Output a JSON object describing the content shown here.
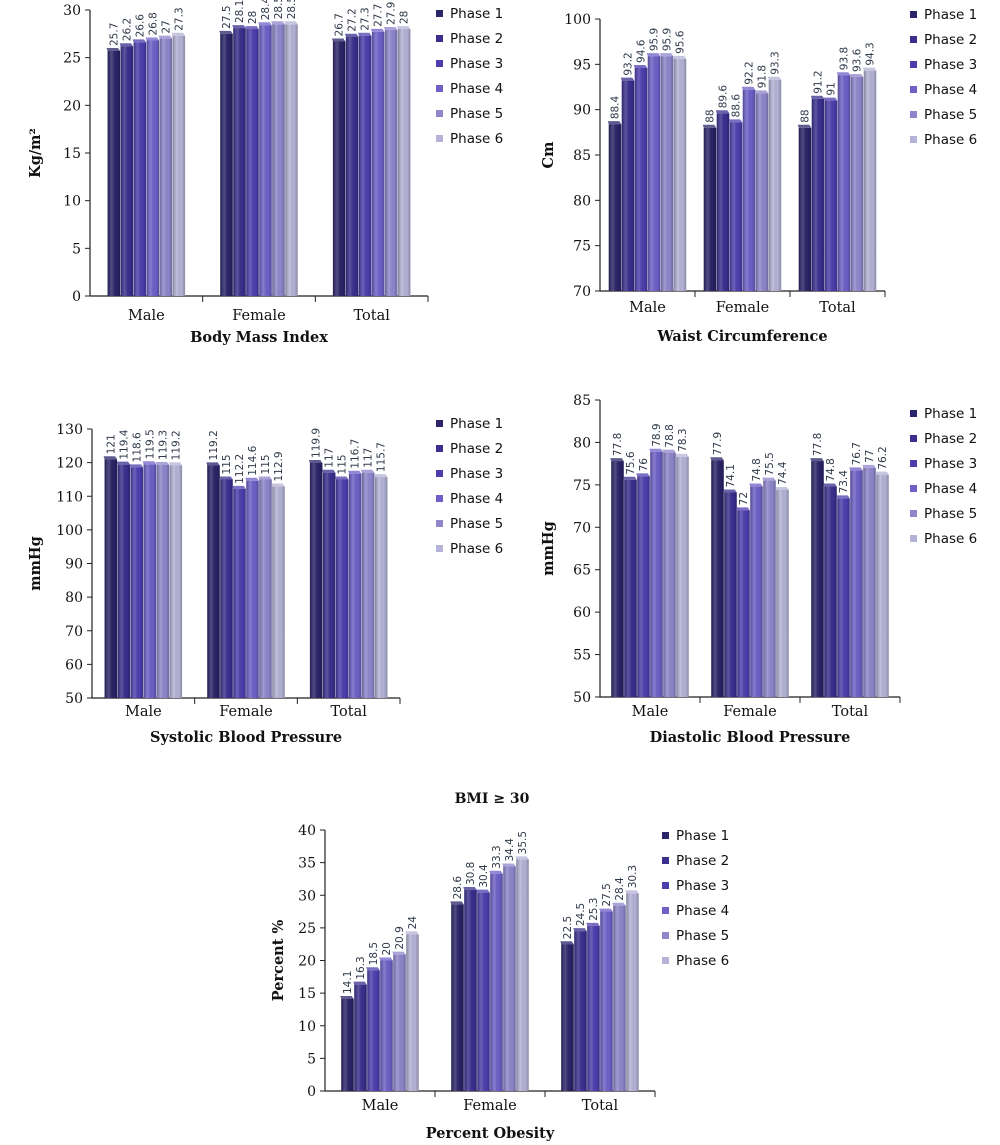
{
  "phase_colors": [
    "#2a2468",
    "#3a2f8e",
    "#4d3eae",
    "#6e60c8",
    "#8f86cc",
    "#b4b2d6"
  ],
  "chart_data": [
    {
      "id": "bmi",
      "type": "bar",
      "title": "Body Mass Index",
      "ylabel": "Kg/m²",
      "categories": [
        "Male",
        "Female",
        "Total"
      ],
      "ylim": [
        0,
        30
      ],
      "yticks": [
        0,
        5,
        10,
        15,
        20,
        25,
        30
      ],
      "legend_position": "right",
      "series": [
        {
          "name": "Phase 1",
          "values": [
            25.7,
            27.5,
            26.7
          ],
          "labels": [
            "25.7",
            "27.5",
            "26.7"
          ]
        },
        {
          "name": "Phase 2",
          "values": [
            26.2,
            28.1,
            27.2
          ],
          "labels": [
            "26.2",
            "28.1",
            "27.2"
          ]
        },
        {
          "name": "Phase 3",
          "values": [
            26.6,
            28,
            27.3
          ],
          "labels": [
            "26.6",
            "28",
            "27.3"
          ]
        },
        {
          "name": "Phase 4",
          "values": [
            26.8,
            28.4,
            27.7
          ],
          "labels": [
            "26.8",
            "28.4",
            "27.7"
          ]
        },
        {
          "name": "Phase 5",
          "values": [
            27,
            28.5,
            27.9
          ],
          "labels": [
            "27",
            "28.5",
            "27.9"
          ]
        },
        {
          "name": "Phase 6",
          "values": [
            27.3,
            28.5,
            28
          ],
          "labels": [
            "27.3",
            "28.5",
            "28"
          ]
        }
      ]
    },
    {
      "id": "waist",
      "type": "bar",
      "title": "Waist Circumference",
      "ylabel": "Cm",
      "categories": [
        "Male",
        "Female",
        "Total"
      ],
      "ylim": [
        70,
        100
      ],
      "yticks": [
        70,
        75,
        80,
        85,
        90,
        95,
        100
      ],
      "legend_position": "right",
      "series": [
        {
          "name": "Phase 1",
          "values": [
            88.4,
            88,
            88
          ],
          "labels": [
            "88.4",
            "88",
            "88"
          ]
        },
        {
          "name": "Phase 2",
          "values": [
            93.2,
            89.6,
            91.2
          ],
          "labels": [
            "93.2",
            "89.6",
            "91.2"
          ]
        },
        {
          "name": "Phase 3",
          "values": [
            94.6,
            88.6,
            91
          ],
          "labels": [
            "94.6",
            "88.6",
            "91"
          ]
        },
        {
          "name": "Phase 4",
          "values": [
            95.9,
            92.2,
            93.8
          ],
          "labels": [
            "95.9",
            "92.2",
            "93.8"
          ]
        },
        {
          "name": "Phase 5",
          "values": [
            95.9,
            91.8,
            93.6
          ],
          "labels": [
            "95.9",
            "91.8",
            "93.6"
          ]
        },
        {
          "name": "Phase 6",
          "values": [
            95.6,
            93.3,
            94.3
          ],
          "labels": [
            "95.6",
            "93.3",
            "94.3"
          ]
        }
      ]
    },
    {
      "id": "systolic",
      "type": "bar",
      "title": "Systolic Blood Pressure",
      "ylabel": "mmHg",
      "categories": [
        "Male",
        "Female",
        "Total"
      ],
      "ylim": [
        50,
        130
      ],
      "yticks": [
        50,
        60,
        70,
        80,
        90,
        100,
        110,
        120,
        130
      ],
      "legend_position": "right",
      "series": [
        {
          "name": "Phase 1",
          "values": [
            121,
            119.2,
            119.9
          ],
          "labels": [
            "121",
            "119.2",
            "119.9"
          ]
        },
        {
          "name": "Phase 2",
          "values": [
            119.4,
            115,
            117
          ],
          "labels": [
            "119.4",
            "115",
            "117"
          ]
        },
        {
          "name": "Phase 3",
          "values": [
            118.6,
            112.2,
            115
          ],
          "labels": [
            "118.6",
            "112.2",
            "115"
          ]
        },
        {
          "name": "Phase 4",
          "values": [
            119.5,
            114.6,
            116.7
          ],
          "labels": [
            "119.5",
            "114.6",
            "116.7"
          ]
        },
        {
          "name": "Phase 5",
          "values": [
            119.3,
            115,
            117
          ],
          "labels": [
            "119.3",
            "115",
            "117"
          ]
        },
        {
          "name": "Phase 6",
          "values": [
            119.2,
            112.9,
            115.7
          ],
          "labels": [
            "119.2",
            "112.9",
            "115.7"
          ]
        }
      ]
    },
    {
      "id": "diastolic",
      "type": "bar",
      "title": "Diastolic Blood Pressure",
      "ylabel": "mmHg",
      "categories": [
        "Male",
        "Female",
        "Total"
      ],
      "ylim": [
        50,
        85
      ],
      "yticks": [
        50,
        55,
        60,
        65,
        70,
        75,
        80,
        85
      ],
      "legend_position": "right",
      "series": [
        {
          "name": "Phase 1",
          "values": [
            77.8,
            77.9,
            77.8
          ],
          "labels": [
            "77.8",
            "77.9",
            "77.8"
          ]
        },
        {
          "name": "Phase 2",
          "values": [
            75.6,
            74.1,
            74.8
          ],
          "labels": [
            "75.6",
            "74.1",
            "74.8"
          ]
        },
        {
          "name": "Phase 3",
          "values": [
            76,
            72,
            73.4
          ],
          "labels": [
            "76",
            "72",
            "73.4"
          ]
        },
        {
          "name": "Phase 4",
          "values": [
            78.9,
            74.8,
            76.7
          ],
          "labels": [
            "78.9",
            "74.8",
            "76.7"
          ]
        },
        {
          "name": "Phase 5",
          "values": [
            78.8,
            75.5,
            77
          ],
          "labels": [
            "78.8",
            "75.5",
            "77"
          ]
        },
        {
          "name": "Phase 6",
          "values": [
            78.3,
            74.4,
            76.2
          ],
          "labels": [
            "78.3",
            "74.4",
            "76.2"
          ]
        }
      ]
    },
    {
      "id": "obesity",
      "type": "bar",
      "suptitle": "BMI ≥ 30",
      "title": "Percent Obesity",
      "ylabel": "Percent %",
      "categories": [
        "Male",
        "Female",
        "Total"
      ],
      "ylim": [
        0,
        40
      ],
      "yticks": [
        0,
        5,
        10,
        15,
        20,
        25,
        30,
        35,
        40
      ],
      "legend_position": "right",
      "series": [
        {
          "name": "Phase 1",
          "values": [
            14.1,
            28.6,
            22.5
          ],
          "labels": [
            "14.1",
            "28.6",
            "22.5"
          ]
        },
        {
          "name": "Phase 2",
          "values": [
            16.3,
            30.8,
            24.5
          ],
          "labels": [
            "16.3",
            "30.8",
            "24.5"
          ]
        },
        {
          "name": "Phase 3",
          "values": [
            18.5,
            30.4,
            25.3
          ],
          "labels": [
            "18.5",
            "30.4",
            "25.3"
          ]
        },
        {
          "name": "Phase 4",
          "values": [
            20,
            33.3,
            27.5
          ],
          "labels": [
            "20",
            "33.3",
            "27.5"
          ]
        },
        {
          "name": "Phase 5",
          "values": [
            20.9,
            34.4,
            28.4
          ],
          "labels": [
            "20.9",
            "34.4",
            "28.4"
          ]
        },
        {
          "name": "Phase 6",
          "values": [
            24,
            35.5,
            30.3
          ],
          "labels": [
            "24",
            "35.5",
            "30.3"
          ]
        }
      ]
    }
  ]
}
